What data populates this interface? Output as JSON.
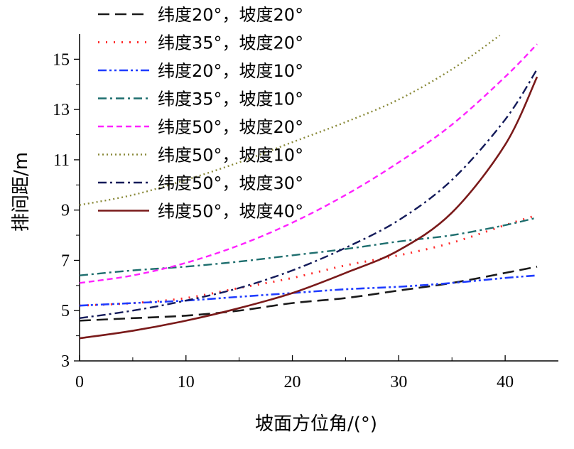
{
  "chart_data": {
    "type": "line",
    "title": "",
    "xlabel": "坡面方位角/(°)",
    "ylabel": "排间距/m",
    "xlim": [
      0,
      45
    ],
    "ylim": [
      3,
      16
    ],
    "xticks": [
      0,
      10,
      20,
      30,
      40
    ],
    "xtick_labels": [
      "0",
      "10",
      "20",
      "30",
      "40"
    ],
    "yticks": [
      3,
      5,
      7,
      9,
      11,
      13,
      15
    ],
    "ytick_labels": [
      "3",
      "5",
      "7",
      "9",
      "11",
      "13",
      "15"
    ],
    "grid": false,
    "legend_position": "top-left",
    "series": [
      {
        "name": "纬度20°，坡度20°",
        "color": "#1a1a1a",
        "dash": "dash",
        "x": [
          0,
          5,
          10,
          15,
          20,
          25,
          30,
          35,
          40,
          43
        ],
        "y": [
          4.6,
          4.7,
          4.8,
          5.0,
          5.3,
          5.5,
          5.8,
          6.1,
          6.5,
          6.75
        ]
      },
      {
        "name": "纬度35°，坡度20°",
        "color": "#ff2a2a",
        "dash": "dot",
        "x": [
          0,
          5,
          10,
          15,
          20,
          25,
          30,
          35,
          40,
          43
        ],
        "y": [
          5.2,
          5.3,
          5.5,
          5.9,
          6.3,
          6.8,
          7.2,
          7.7,
          8.4,
          8.8
        ]
      },
      {
        "name": "纬度20°，坡度10°",
        "color": "#1f3cff",
        "dash": "dashdotdot",
        "x": [
          0,
          5,
          10,
          15,
          20,
          25,
          30,
          35,
          40,
          43
        ],
        "y": [
          5.2,
          5.3,
          5.4,
          5.55,
          5.7,
          5.85,
          5.95,
          6.1,
          6.3,
          6.4
        ]
      },
      {
        "name": "纬度35°，坡度10°",
        "color": "#1e6e6e",
        "dash": "dashdot",
        "x": [
          0,
          5,
          10,
          15,
          20,
          25,
          30,
          35,
          40,
          43
        ],
        "y": [
          6.4,
          6.6,
          6.75,
          6.95,
          7.2,
          7.45,
          7.75,
          8.0,
          8.4,
          8.7
        ]
      },
      {
        "name": "纬度50°，坡度20°",
        "color": "#ff22ff",
        "dash": "shortdash",
        "x": [
          0,
          5,
          10,
          15,
          20,
          25,
          30,
          35,
          40,
          43
        ],
        "y": [
          6.1,
          6.4,
          6.9,
          7.6,
          8.5,
          9.6,
          10.9,
          12.4,
          14.3,
          15.6
        ]
      },
      {
        "name": "纬度50°，坡度10°",
        "color": "#8a8a3a",
        "dash": "finedot",
        "x": [
          0,
          5,
          10,
          15,
          20,
          25,
          30,
          35,
          39.5
        ],
        "y": [
          9.2,
          9.6,
          10.2,
          10.9,
          11.7,
          12.5,
          13.4,
          14.6,
          15.95
        ]
      },
      {
        "name": "纬度50°，坡度30°",
        "color": "#141b5a",
        "dash": "dashdot",
        "x": [
          0,
          5,
          10,
          15,
          20,
          25,
          30,
          35,
          40,
          43
        ],
        "y": [
          4.7,
          5.0,
          5.4,
          5.9,
          6.6,
          7.5,
          8.6,
          10.2,
          12.6,
          14.6
        ]
      },
      {
        "name": "纬度50°，坡度40°",
        "color": "#7a1a1a",
        "dash": "solid",
        "x": [
          0,
          5,
          10,
          15,
          20,
          25,
          30,
          35,
          40,
          43
        ],
        "y": [
          3.9,
          4.2,
          4.6,
          5.1,
          5.7,
          6.5,
          7.4,
          8.9,
          11.6,
          14.3
        ]
      }
    ]
  }
}
